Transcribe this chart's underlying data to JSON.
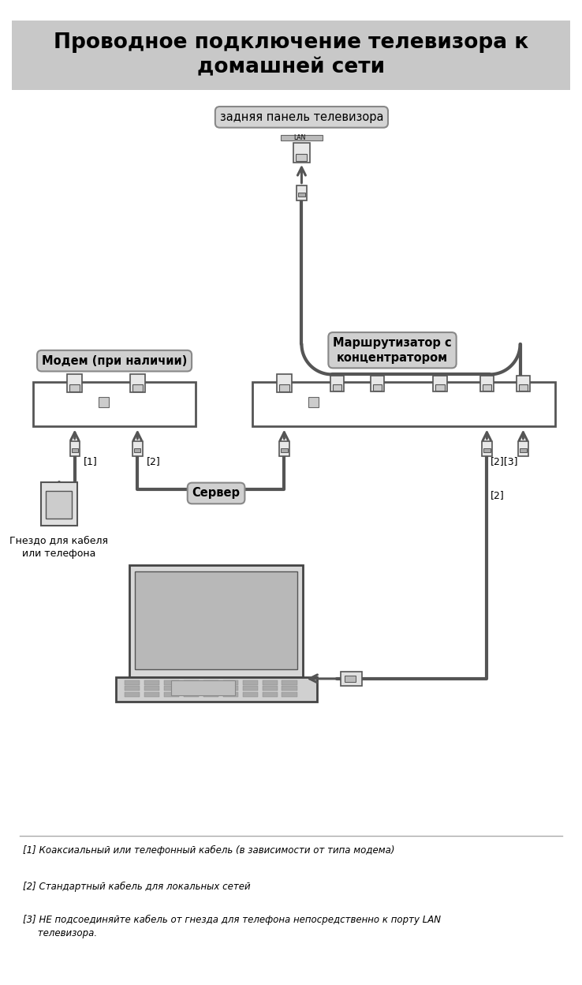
{
  "title": "Проводное подключение телевизора к\nдомашней сети",
  "title_bg": "#c8c8c8",
  "bg_color": "#ffffff",
  "label_tv": "задняя панель телевизора",
  "label_modem": "Модем (при наличии)",
  "label_router": "Маршрутизатор с\nконцентратором",
  "label_server": "Сервер",
  "label_socket": "Гнездо для кабеля\nили телефона",
  "label_lan": "LAN",
  "label_1": "[1]",
  "label_2a": "[2]",
  "label_2b": "[2]",
  "label_23": "[2][3]",
  "footnote1": "[1] Коаксиальный или телефонный кабель (в зависимости от типа модема)",
  "footnote2": "[2] Стандартный кабель для локальных сетей",
  "footnote3": "[3] НЕ подсоединяйте кабель от гнезда для телефона непосредственно к порту LAN\n     телевизора.",
  "label_bg": "#d0d0d0",
  "cable_color": "#555555",
  "arrow_color": "#555555"
}
